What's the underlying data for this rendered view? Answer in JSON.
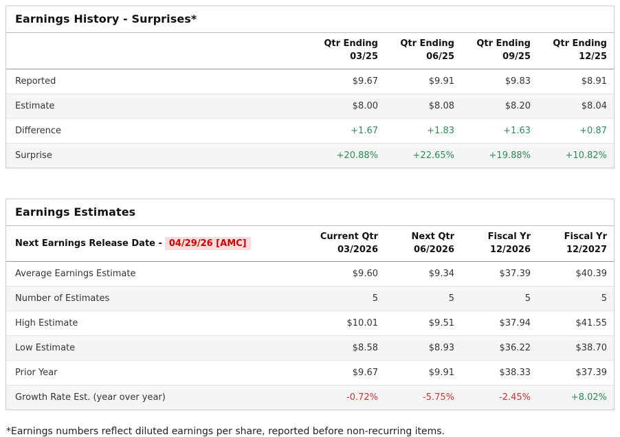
{
  "colors": {
    "positive_green": "#2e8b57",
    "negative_red": "#cc3333",
    "release_highlight_bg": "#fbdcdc",
    "release_highlight_text": "#cc0000"
  },
  "earnings_history": {
    "title": "Earnings History - Surprises*",
    "columns": [
      {
        "line1": "Qtr Ending",
        "line2": "03/25"
      },
      {
        "line1": "Qtr Ending",
        "line2": "06/25"
      },
      {
        "line1": "Qtr Ending",
        "line2": "09/25"
      },
      {
        "line1": "Qtr Ending",
        "line2": "12/25"
      }
    ],
    "rows": [
      {
        "label": "Reported",
        "values": [
          "$9.67",
          "$9.91",
          "$9.83",
          "$8.91"
        ],
        "value_colors": [
          null,
          null,
          null,
          null
        ],
        "striped": false
      },
      {
        "label": "Estimate",
        "values": [
          "$8.00",
          "$8.08",
          "$8.20",
          "$8.04"
        ],
        "value_colors": [
          null,
          null,
          null,
          null
        ],
        "striped": true
      },
      {
        "label": "Difference",
        "values": [
          "+1.67",
          "+1.83",
          "+1.63",
          "+0.87"
        ],
        "value_colors": [
          "green",
          "green",
          "green",
          "green"
        ],
        "striped": false
      },
      {
        "label": "Surprise",
        "values": [
          "+20.88%",
          "+22.65%",
          "+19.88%",
          "+10.82%"
        ],
        "value_colors": [
          "green",
          "green",
          "green",
          "green"
        ],
        "striped": true
      }
    ]
  },
  "earnings_estimates": {
    "title": "Earnings Estimates",
    "release_label": "Next Earnings Release Date -",
    "release_date": "04/29/26 [AMC]",
    "columns": [
      {
        "line1": "Current Qtr",
        "line2": "03/2026"
      },
      {
        "line1": "Next Qtr",
        "line2": "06/2026"
      },
      {
        "line1": "Fiscal Yr",
        "line2": "12/2026"
      },
      {
        "line1": "Fiscal Yr",
        "line2": "12/2027"
      }
    ],
    "rows": [
      {
        "label": "Average Earnings Estimate",
        "values": [
          "$9.60",
          "$9.34",
          "$37.39",
          "$40.39"
        ],
        "value_colors": [
          null,
          null,
          null,
          null
        ],
        "striped": false
      },
      {
        "label": "Number of Estimates",
        "values": [
          "5",
          "5",
          "5",
          "5"
        ],
        "value_colors": [
          null,
          null,
          null,
          null
        ],
        "striped": true
      },
      {
        "label": "High Estimate",
        "values": [
          "$10.01",
          "$9.51",
          "$37.94",
          "$41.55"
        ],
        "value_colors": [
          null,
          null,
          null,
          null
        ],
        "striped": false
      },
      {
        "label": "Low Estimate",
        "values": [
          "$8.58",
          "$8.93",
          "$36.22",
          "$38.70"
        ],
        "value_colors": [
          null,
          null,
          null,
          null
        ],
        "striped": true
      },
      {
        "label": "Prior Year",
        "values": [
          "$9.67",
          "$9.91",
          "$38.33",
          "$37.39"
        ],
        "value_colors": [
          null,
          null,
          null,
          null
        ],
        "striped": false
      },
      {
        "label": "Growth Rate Est. (year over year)",
        "values": [
          "-0.72%",
          "-5.75%",
          "-2.45%",
          "+8.02%"
        ],
        "value_colors": [
          "red",
          "red",
          "red",
          "green"
        ],
        "striped": true
      }
    ]
  },
  "footnote": "*Earnings numbers reflect diluted earnings per share, reported before non-recurring items."
}
